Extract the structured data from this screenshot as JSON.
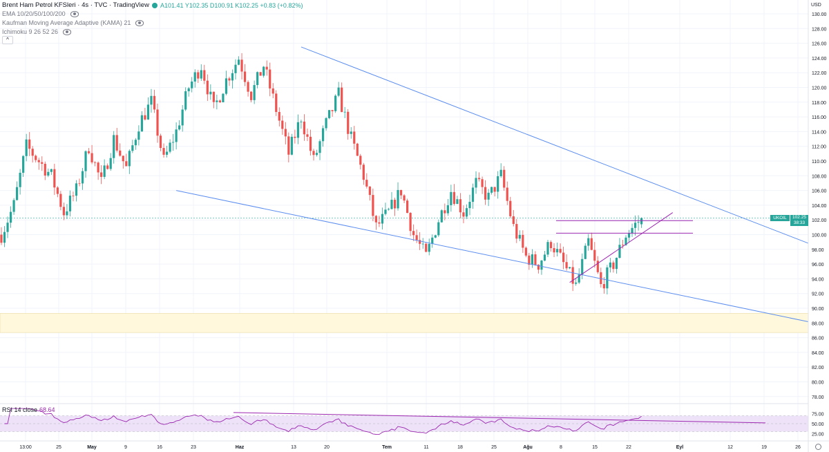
{
  "header": {
    "title": "Brent Ham Petrol KFSleri · 4s · TVC · TradingView",
    "ohlc": "A101.41 Y102.35 D100.91 K102.25 +0.83 (+0.82%)"
  },
  "indicators": [
    {
      "label": "EMA 10/20/50/100/200"
    },
    {
      "label": "Kaufman Moving Average Adaptive (KAMA) 21"
    },
    {
      "label": "Ichimoku 9 26 52 26"
    }
  ],
  "collapse_label": "^",
  "rsi": {
    "label": "RSI 14 close",
    "value": "68.64"
  },
  "price_tag": {
    "symbol": "UKOIL",
    "price": "102.25",
    "countdown": "38:33"
  },
  "colors": {
    "up": "#26a69a",
    "down": "#ef5350",
    "trendline": "#5b8def",
    "hline": "#9c27b0",
    "zone": "#fff8dc",
    "rsi": "#9c27b0"
  },
  "chart_data": {
    "type": "candlestick",
    "title": "Brent Ham Petrol KFSleri",
    "interval": "4s",
    "y_axis_label": "USD",
    "ylim": [
      76,
      132
    ],
    "y_ticks": [
      "130.00",
      "128.00",
      "126.00",
      "124.00",
      "122.00",
      "120.00",
      "118.00",
      "116.00",
      "114.00",
      "112.00",
      "110.00",
      "108.00",
      "106.00",
      "104.00",
      "102.00",
      "100.00",
      "98.00",
      "96.00",
      "94.00",
      "92.00",
      "90.00",
      "88.00",
      "86.00",
      "84.00",
      "82.00",
      "80.00",
      "78.00"
    ],
    "x_ticks": [
      "13:00",
      "25",
      "May",
      "9",
      "16",
      "23",
      "Haz",
      "13",
      "20",
      "Tem",
      "11",
      "18",
      "25",
      "Ağu",
      "8",
      "15",
      "22",
      "Eyl",
      "12",
      "19",
      "26"
    ],
    "close_path": [
      [
        0,
        100
      ],
      [
        4,
        104
      ],
      [
        8,
        112
      ],
      [
        12,
        110
      ],
      [
        16,
        108
      ],
      [
        20,
        103
      ],
      [
        24,
        106
      ],
      [
        28,
        112
      ],
      [
        32,
        107
      ],
      [
        36,
        113
      ],
      [
        40,
        109
      ],
      [
        44,
        115
      ],
      [
        48,
        118
      ],
      [
        52,
        110
      ],
      [
        56,
        114
      ],
      [
        60,
        120
      ],
      [
        64,
        123
      ],
      [
        68,
        117
      ],
      [
        72,
        121
      ],
      [
        76,
        124
      ],
      [
        80,
        119
      ],
      [
        84,
        123
      ],
      [
        88,
        117
      ],
      [
        92,
        111
      ],
      [
        96,
        116
      ],
      [
        100,
        110
      ],
      [
        104,
        115
      ],
      [
        108,
        119
      ],
      [
        112,
        113
      ],
      [
        116,
        108
      ],
      [
        120,
        101
      ],
      [
        124,
        103
      ],
      [
        128,
        106
      ],
      [
        132,
        100
      ],
      [
        136,
        97
      ],
      [
        140,
        102
      ],
      [
        144,
        106
      ],
      [
        148,
        103
      ],
      [
        152,
        107
      ],
      [
        156,
        105
      ],
      [
        160,
        108
      ],
      [
        164,
        101
      ],
      [
        168,
        97
      ],
      [
        172,
        96
      ],
      [
        176,
        99
      ],
      [
        180,
        96
      ],
      [
        184,
        93
      ],
      [
        188,
        99
      ],
      [
        192,
        93
      ],
      [
        196,
        96
      ],
      [
        200,
        100
      ],
      [
        205,
        102.25
      ]
    ],
    "ohlc_last": {
      "open": 101.41,
      "high": 102.35,
      "low": 100.91,
      "close": 102.25,
      "change": "+0.83",
      "change_pct": "+0.82%"
    },
    "trendlines": [
      {
        "from": [
          96,
          125.5
        ],
        "to": [
          300,
          92
        ]
      },
      {
        "from": [
          56,
          106
        ],
        "to": [
          300,
          84.5
        ]
      },
      {
        "from": [
          182,
          93.5
        ],
        "to": [
          215,
          103
        ]
      }
    ],
    "horizontal_lines": [
      101.9,
      100.2
    ],
    "zone": [
      86.7,
      89.3
    ],
    "rsi": {
      "ylim": [
        10,
        90
      ],
      "ticks": [
        "75.00",
        "50.00",
        "25.00"
      ],
      "band": [
        30,
        70
      ],
      "last": 68.64
    }
  }
}
